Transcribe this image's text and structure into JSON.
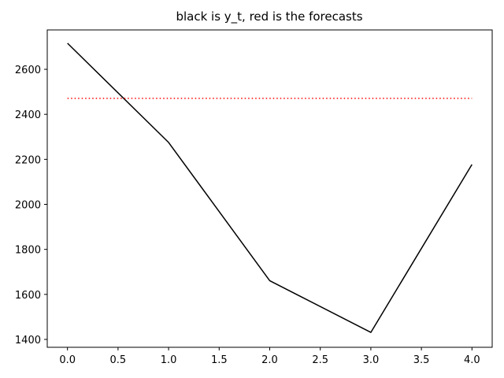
{
  "chart_data": {
    "type": "line",
    "title": "black is y_t, red is the forecasts",
    "xlabel": "",
    "ylabel": "",
    "xlim": [
      -0.2,
      4.2
    ],
    "ylim": [
      1365,
      2775
    ],
    "xticks": [
      0.0,
      0.5,
      1.0,
      1.5,
      2.0,
      2.5,
      3.0,
      3.5,
      4.0
    ],
    "xtick_labels": [
      "0.0",
      "0.5",
      "1.0",
      "1.5",
      "2.0",
      "2.5",
      "3.0",
      "3.5",
      "4.0"
    ],
    "yticks": [
      1400,
      1600,
      1800,
      2000,
      2200,
      2400,
      2600
    ],
    "ytick_labels": [
      "1400",
      "1600",
      "1800",
      "2000",
      "2200",
      "2400",
      "2600"
    ],
    "grid": false,
    "legend": "none",
    "series": [
      {
        "color": "#000000",
        "style": "solid",
        "x": [
          0,
          1,
          2,
          3,
          4
        ],
        "y": [
          2716,
          2275,
          1661,
          1431,
          2177
        ]
      },
      {
        "color": "#ff0000",
        "style": "dotted",
        "x": [
          0,
          1,
          2,
          3,
          4
        ],
        "y": [
          2471,
          2471,
          2471,
          2471,
          2471
        ]
      }
    ]
  }
}
